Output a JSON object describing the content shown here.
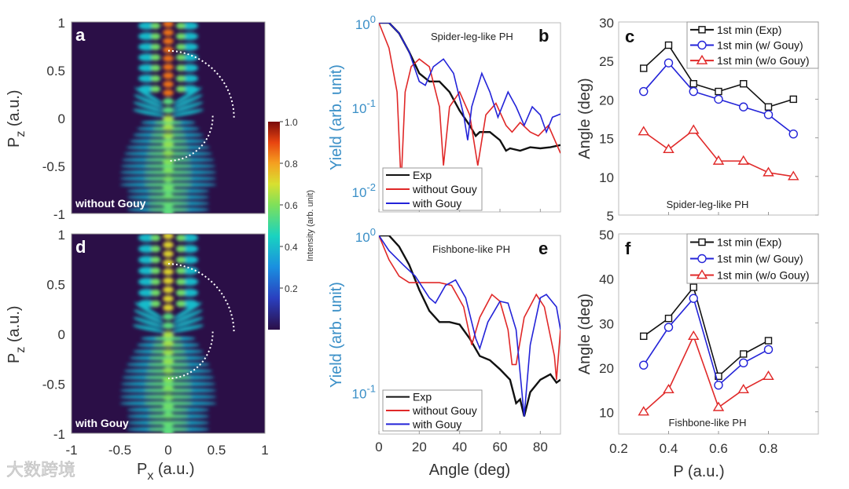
{
  "watermark": "大数跨境",
  "colors": {
    "exp": "#111111",
    "without": "#e02828",
    "with": "#2323d8",
    "ylabel_blue": "#3a8fc7",
    "heat_bg": "#2b0f47"
  },
  "chart_data": [
    {
      "id": "a",
      "type": "heatmap",
      "panel_label": "a",
      "annotation": "without Gouy",
      "xlabel": {
        "main": "P",
        "sub": "x",
        "unit": " (a.u.)"
      },
      "ylabel": {
        "main": "P",
        "sub": "z",
        "unit": " (a.u.)"
      },
      "xlim": [
        -1,
        1
      ],
      "ylim": [
        -1,
        1
      ],
      "xticks": [],
      "yticks": [
        1,
        0.5,
        0,
        -0.5,
        -1
      ]
    },
    {
      "id": "d",
      "type": "heatmap",
      "panel_label": "d",
      "annotation": "with Gouy",
      "xlabel": {
        "main": "P",
        "sub": "x",
        "unit": " (a.u.)"
      },
      "ylabel": {
        "main": "P",
        "sub": "z",
        "unit": " (a.u.)"
      },
      "xlim": [
        -1,
        1
      ],
      "ylim": [
        -1,
        1
      ],
      "xticks": [
        -1,
        -0.5,
        0,
        0.5,
        1
      ],
      "yticks": [
        1,
        0.5,
        0,
        -0.5,
        -1
      ]
    },
    {
      "id": "colorbar",
      "type": "colorbar",
      "label": "Intensity (arb. unit)",
      "range": [
        0,
        1
      ],
      "ticks": [
        "1.0",
        "0.8",
        "0.6",
        "0.4",
        "0.2"
      ]
    },
    {
      "id": "b",
      "type": "line",
      "panel_label": "b",
      "title": "Spider-leg-like PH",
      "xlabel": "",
      "ylabel": "Yield (arb. unit)",
      "yscale": "log",
      "xlim": [
        0,
        90
      ],
      "ylim": [
        0.0056,
        1
      ],
      "yticks": [
        0,
        -1,
        -2
      ],
      "xticks": [],
      "series": [
        {
          "name": "Exp",
          "color": "#111111",
          "x": [
            0,
            5,
            10,
            15,
            20,
            25,
            30,
            35,
            40,
            45,
            48,
            50,
            55,
            60,
            63,
            65,
            70,
            75,
            80,
            85,
            90
          ],
          "y": [
            1,
            1,
            0.75,
            0.45,
            0.25,
            0.2,
            0.2,
            0.15,
            0.09,
            0.06,
            0.045,
            0.05,
            0.05,
            0.04,
            0.03,
            0.032,
            0.03,
            0.033,
            0.032,
            0.033,
            0.035
          ]
        },
        {
          "name": "without Gouy",
          "color": "#e02828",
          "x": [
            0,
            5,
            9,
            11,
            13,
            16,
            20,
            25,
            30,
            32,
            35,
            40,
            45,
            49,
            53,
            58,
            63,
            66,
            70,
            75,
            79,
            84,
            90
          ],
          "y": [
            1,
            0.5,
            0.15,
            0.012,
            0.15,
            0.3,
            0.37,
            0.3,
            0.1,
            0.02,
            0.1,
            0.15,
            0.08,
            0.02,
            0.08,
            0.11,
            0.06,
            0.05,
            0.065,
            0.05,
            0.045,
            0.06,
            0.028
          ]
        },
        {
          "name": "with Gouy",
          "color": "#2323d8",
          "x": [
            0,
            5,
            10,
            15,
            20,
            23,
            27,
            32,
            37,
            42,
            44,
            46,
            51,
            55,
            59,
            64,
            68,
            72,
            76,
            80,
            83,
            86,
            90
          ],
          "y": [
            1,
            1,
            0.75,
            0.45,
            0.2,
            0.18,
            0.3,
            0.37,
            0.25,
            0.08,
            0.04,
            0.1,
            0.25,
            0.15,
            0.075,
            0.15,
            0.1,
            0.06,
            0.1,
            0.08,
            0.05,
            0.075,
            0.082
          ]
        }
      ]
    },
    {
      "id": "e",
      "type": "line",
      "panel_label": "e",
      "title": "Fishbone-like PH",
      "xlabel": "Angle (deg)",
      "ylabel": "Yield (arb. unit)",
      "yscale": "log",
      "xlim": [
        0,
        90
      ],
      "ylim": [
        0.054,
        1
      ],
      "yticks": [
        0,
        -1
      ],
      "xticks": [
        0,
        20,
        40,
        60,
        80
      ],
      "series": [
        {
          "name": "Exp",
          "color": "#111111",
          "x": [
            0,
            5,
            10,
            15,
            20,
            25,
            30,
            35,
            40,
            45,
            50,
            55,
            60,
            65,
            68,
            70,
            72,
            75,
            80,
            85,
            88,
            90
          ],
          "y": [
            1,
            1,
            0.85,
            0.65,
            0.45,
            0.33,
            0.28,
            0.28,
            0.27,
            0.22,
            0.17,
            0.16,
            0.14,
            0.12,
            0.085,
            0.09,
            0.07,
            0.1,
            0.12,
            0.13,
            0.115,
            0.12
          ]
        },
        {
          "name": "without Gouy",
          "color": "#e02828",
          "x": [
            0,
            5,
            10,
            15,
            20,
            30,
            36,
            42,
            46,
            50,
            56,
            60,
            64,
            66,
            68,
            72,
            78,
            82,
            87,
            88,
            90
          ],
          "y": [
            1,
            0.7,
            0.55,
            0.5,
            0.5,
            0.5,
            0.48,
            0.35,
            0.2,
            0.3,
            0.42,
            0.38,
            0.25,
            0.15,
            0.15,
            0.3,
            0.42,
            0.35,
            0.17,
            0.12,
            0.25
          ]
        },
        {
          "name": "with Gouy",
          "color": "#2323d8",
          "x": [
            0,
            5,
            12,
            18,
            25,
            28,
            33,
            38,
            43,
            48,
            50,
            54,
            60,
            64,
            68,
            72,
            75,
            80,
            83,
            88,
            90
          ],
          "y": [
            1,
            0.8,
            0.65,
            0.55,
            0.4,
            0.37,
            0.48,
            0.52,
            0.4,
            0.22,
            0.19,
            0.28,
            0.38,
            0.37,
            0.25,
            0.07,
            0.2,
            0.4,
            0.42,
            0.35,
            0.25
          ]
        }
      ]
    },
    {
      "id": "c",
      "type": "line",
      "panel_label": "c",
      "annotation": "Spider-leg-like PH",
      "xlabel": "",
      "ylabel": "Angle (deg)",
      "xlim": [
        0.2,
        1.0
      ],
      "ylim": [
        5,
        30
      ],
      "xticks": [],
      "yticks": [
        5,
        10,
        15,
        20,
        25,
        30
      ],
      "series": [
        {
          "name": "1st min (Exp)",
          "marker": "square",
          "color": "#111111",
          "x": [
            0.3,
            0.4,
            0.5,
            0.6,
            0.7,
            0.8,
            0.9
          ],
          "y": [
            24,
            27,
            22,
            21,
            22,
            19,
            20
          ]
        },
        {
          "name": "1st min (w/ Gouy)",
          "marker": "circle",
          "color": "#2323d8",
          "x": [
            0.3,
            0.4,
            0.5,
            0.6,
            0.7,
            0.8,
            0.9
          ],
          "y": [
            21,
            24.7,
            21,
            20,
            19,
            18,
            15.5
          ]
        },
        {
          "name": "1st min (w/o Gouy)",
          "marker": "triangle",
          "color": "#e02828",
          "x": [
            0.3,
            0.4,
            0.5,
            0.6,
            0.7,
            0.8,
            0.9
          ],
          "y": [
            15.8,
            13.5,
            16,
            12,
            12,
            10.5,
            10
          ]
        }
      ]
    },
    {
      "id": "f",
      "type": "line",
      "panel_label": "f",
      "annotation": "Fishbone-like PH",
      "xlabel": "P (a.u.)",
      "ylabel": "Angle (deg)",
      "xlim": [
        0.2,
        1.0
      ],
      "ylim": [
        5,
        50
      ],
      "xticks": [
        0.2,
        0.4,
        0.6,
        0.8
      ],
      "yticks": [
        10,
        20,
        30,
        40,
        50
      ],
      "series": [
        {
          "name": "1st min (Exp)",
          "marker": "square",
          "color": "#111111",
          "x": [
            0.3,
            0.4,
            0.5,
            0.6,
            0.7,
            0.8
          ],
          "y": [
            27,
            31,
            38,
            18,
            23,
            26
          ]
        },
        {
          "name": "1st min (w/ Gouy)",
          "marker": "circle",
          "color": "#2323d8",
          "x": [
            0.3,
            0.4,
            0.5,
            0.6,
            0.7,
            0.8
          ],
          "y": [
            20.5,
            29,
            35.5,
            16,
            21,
            24
          ]
        },
        {
          "name": "1st min (w/o Gouy)",
          "marker": "triangle",
          "color": "#e02828",
          "x": [
            0.3,
            0.4,
            0.5,
            0.6,
            0.7,
            0.8
          ],
          "y": [
            10,
            15,
            27,
            11,
            15,
            18
          ]
        }
      ]
    }
  ]
}
